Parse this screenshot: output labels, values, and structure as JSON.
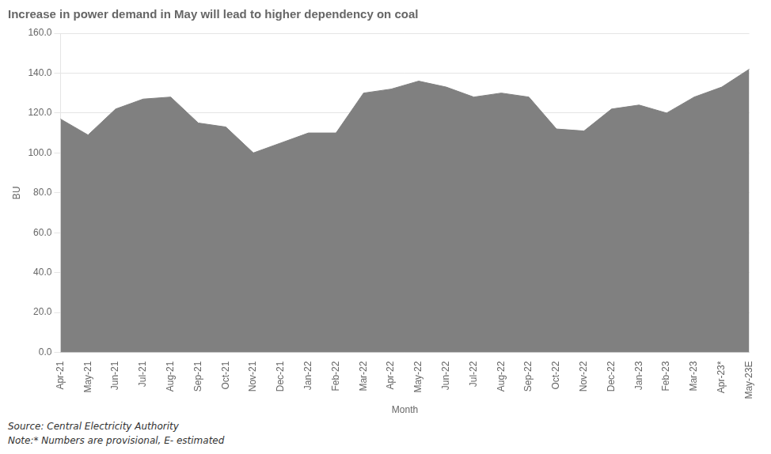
{
  "chart_data": {
    "type": "area",
    "title": "Increase in power demand in May will lead to higher dependency on coal",
    "y_label": "BU",
    "x_label": "Month",
    "annotations": [
      "Source: Central Electricity Authority",
      "Note:* Numbers are provisional, E- estimated"
    ],
    "color": "#808080",
    "grid": true,
    "ylim": [
      0,
      160
    ],
    "yticks": [
      {
        "value": 0,
        "label": "0.0"
      },
      {
        "value": 20,
        "label": "20.0"
      },
      {
        "value": 40,
        "label": "40.0"
      },
      {
        "value": 60,
        "label": "60.0"
      },
      {
        "value": 80,
        "label": "80.0"
      },
      {
        "value": 100,
        "label": "100.0"
      },
      {
        "value": 120,
        "label": "120.0"
      },
      {
        "value": 140,
        "label": "140.0"
      },
      {
        "value": 160,
        "label": "160.0"
      }
    ],
    "categories": [
      "Apr-21",
      "May-21",
      "Jun-21",
      "Jul-21",
      "Aug-21",
      "Sep-21",
      "Oct-21",
      "Nov-21",
      "Dec-21",
      "Jan-22",
      "Feb-22",
      "Mar-22",
      "Apr-22",
      "May-22",
      "Jun-22",
      "Jul-22",
      "Aug-22",
      "Sep-22",
      "Oct-22",
      "Nov-22",
      "Dec-22",
      "Jan-23",
      "Feb-23",
      "Mar-23",
      "Apr-23*",
      "May-23E"
    ],
    "values": [
      117,
      109,
      122,
      127,
      128,
      115,
      113,
      100,
      105,
      110,
      110,
      130,
      132,
      136,
      133,
      128,
      130,
      128,
      112,
      111,
      122,
      124,
      120,
      128,
      133,
      142
    ]
  }
}
